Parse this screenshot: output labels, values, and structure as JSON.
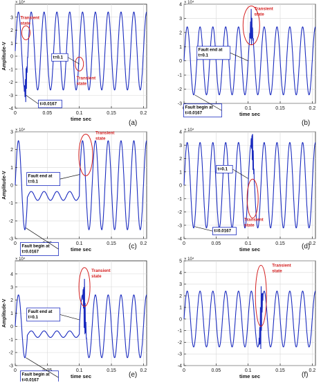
{
  "chart_data": [
    {
      "type": "line",
      "panel_label": "(a)",
      "exponent_label": "× 10⁴",
      "xlabel": "time sec",
      "ylabel": "Amplitude-V",
      "xlim": [
        0,
        0.205
      ],
      "ylim": [
        -4,
        4
      ],
      "yticks": [
        -4,
        -3,
        -2,
        -1,
        0,
        1,
        2,
        3
      ],
      "xticks": [
        0,
        0.05,
        0.1,
        0.15,
        0.2
      ],
      "xtick_labels": [
        "0",
        "0.05",
        "0.1",
        "0.15",
        "0.2"
      ],
      "grid": true,
      "series": [
        {
          "amplitude": 3.0,
          "offset": 0.4,
          "frequency_hz": 50,
          "events": [
            {
              "t": 0.0167,
              "note": "small spike"
            },
            {
              "t": 0.1,
              "note": "small dip"
            }
          ]
        }
      ],
      "annotations": [
        {
          "text": "Transient state",
          "color": "#d42020",
          "t": 0.0167,
          "y": 1.8
        },
        {
          "text": "Transient state",
          "color": "#d42020",
          "t": 0.1,
          "y": -0.6
        },
        {
          "text": "t=0.1",
          "color": "#000000",
          "t": 0.1,
          "y": -0.6
        },
        {
          "text": "t=0.0167",
          "color": "#000000",
          "t": 0.0167,
          "y": -3.0
        }
      ]
    },
    {
      "type": "line",
      "panel_label": "(b)",
      "exponent_label": "× 10⁴",
      "xlabel": "time sec",
      "ylabel": "",
      "xlim": [
        0,
        0.205
      ],
      "ylim": [
        -3,
        4
      ],
      "yticks": [
        -3,
        -2,
        -1,
        0,
        1,
        2,
        3,
        4
      ],
      "xticks": [
        0,
        0.05,
        0.1,
        0.15,
        0.2
      ],
      "xtick_labels": [
        "0",
        "0.05",
        "0.1",
        "0.15",
        "0.2"
      ],
      "grid": true,
      "series": [
        {
          "amplitude": 2.4,
          "offset": 0,
          "frequency_hz": 50,
          "events": [
            {
              "t": 0.105,
              "note": "spike to about 3"
            }
          ]
        }
      ],
      "annotations": [
        {
          "text": "Transient state",
          "color": "#d42020",
          "t": 0.105,
          "y": 2.5
        },
        {
          "text": "Fault end at t=0.1",
          "color": "#000000",
          "t": 0.1,
          "y": 0
        },
        {
          "text": "Fault begin at t=0.0167",
          "color": "#000000",
          "t": 0.0167,
          "y": -2.4
        }
      ]
    },
    {
      "type": "line",
      "panel_label": "(c)",
      "exponent_label": "× 10⁴",
      "xlabel": "time sec",
      "ylabel": "Amplitude-V",
      "xlim": [
        0,
        0.205
      ],
      "ylim": [
        -3,
        3
      ],
      "yticks": [
        -3,
        -2,
        -1,
        0,
        1,
        2,
        3
      ],
      "xticks": [
        0,
        0.05,
        0.1,
        0.15,
        0.2
      ],
      "xtick_labels": [
        "0",
        "0.05",
        "0.1",
        "0.15",
        "0.2"
      ],
      "grid": true,
      "series": [
        {
          "amplitude": 2.5,
          "offset": 0,
          "frequency_hz": 50,
          "events": [
            {
              "t": 0.0167,
              "note": "fault begins, waveform flattens"
            },
            {
              "t": 0.1,
              "note": "fault ends"
            }
          ]
        }
      ],
      "annotations": [
        {
          "text": "Transient state",
          "color": "#d42020",
          "t": 0.11,
          "y": 1.7
        },
        {
          "text": "Fault end at t=0.1",
          "color": "#000000",
          "t": 0.1,
          "y": 0.6
        },
        {
          "text": "Fault begin at t=0.0167",
          "color": "#000000",
          "t": 0.0167,
          "y": -2.4
        }
      ]
    },
    {
      "type": "line",
      "panel_label": "(d)",
      "exponent_label": "× 10⁴",
      "xlabel": "time sec",
      "ylabel": "",
      "xlim": [
        0,
        0.205
      ],
      "ylim": [
        -4,
        4
      ],
      "yticks": [
        -4,
        -3,
        -2,
        -1,
        0,
        1,
        2,
        3,
        4
      ],
      "xticks": [
        0,
        0.05,
        0.1,
        0.15,
        0.2
      ],
      "xtick_labels": [
        "0",
        "0.05",
        "0.1",
        "0.15",
        "0.2"
      ],
      "grid": true,
      "series": [
        {
          "amplitude": 3.2,
          "offset": 0,
          "frequency_hz": 50,
          "events": [
            {
              "t": 0.107,
              "note": "transient"
            }
          ]
        }
      ],
      "annotations": [
        {
          "text": "Transient state",
          "color": "#d42020",
          "t": 0.107,
          "y": -1.0
        },
        {
          "text": "t=0.1",
          "color": "#000000",
          "t": 0.1,
          "y": 0.5
        },
        {
          "text": "t=0.0167",
          "color": "#000000",
          "t": 0.0167,
          "y": -3.1
        }
      ]
    },
    {
      "type": "line",
      "panel_label": "(e)",
      "exponent_label": "× 10⁴",
      "xlabel": "time sec",
      "ylabel": "Amplitude-V",
      "xlim": [
        0,
        0.205
      ],
      "ylim": [
        -3,
        5
      ],
      "yticks": [
        -3,
        -2,
        -1,
        0,
        1,
        2,
        3,
        4
      ],
      "xticks": [
        0,
        0.05,
        0.1,
        0.15,
        0.2
      ],
      "xtick_labels": [
        "0",
        "0.05",
        "0.1",
        "0.15",
        "0.2"
      ],
      "grid": true,
      "series": [
        {
          "amplitude": 2.4,
          "offset": 0,
          "frequency_hz": 50,
          "events": [
            {
              "t": 0.0167,
              "note": "fault begins, waveform flattens"
            },
            {
              "t": 0.108,
              "note": "spike to about 4"
            }
          ]
        }
      ],
      "annotations": [
        {
          "text": "Transient state",
          "color": "#d42020",
          "t": 0.108,
          "y": 3.0
        },
        {
          "text": "Fault end at t=0.1",
          "color": "#000000",
          "t": 0.1,
          "y": 0.5
        },
        {
          "text": "Fault begin at t=0.0167",
          "color": "#000000",
          "t": 0.0167,
          "y": -2.4
        }
      ]
    },
    {
      "type": "line",
      "panel_label": "(f)",
      "exponent_label": "× 10⁴",
      "xlabel": "time sec",
      "ylabel": "",
      "xlim": [
        0,
        0.205
      ],
      "ylim": [
        -4,
        5
      ],
      "yticks": [
        -4,
        -3,
        -2,
        -1,
        0,
        1,
        2,
        3,
        4,
        5
      ],
      "xticks": [
        0,
        0.05,
        0.1,
        0.15,
        0.2
      ],
      "xtick_labels": [
        "0",
        "0.05",
        "0.1",
        "0.15",
        "0.2"
      ],
      "grid": true,
      "series": [
        {
          "amplitude": 2.4,
          "offset": 0,
          "frequency_hz": 50,
          "events": [
            {
              "t": 0.12,
              "note": "large transient to about 4.6"
            }
          ]
        }
      ],
      "annotations": [
        {
          "text": "Transient state",
          "color": "#d42020",
          "t": 0.12,
          "y": 2.0
        }
      ]
    }
  ]
}
